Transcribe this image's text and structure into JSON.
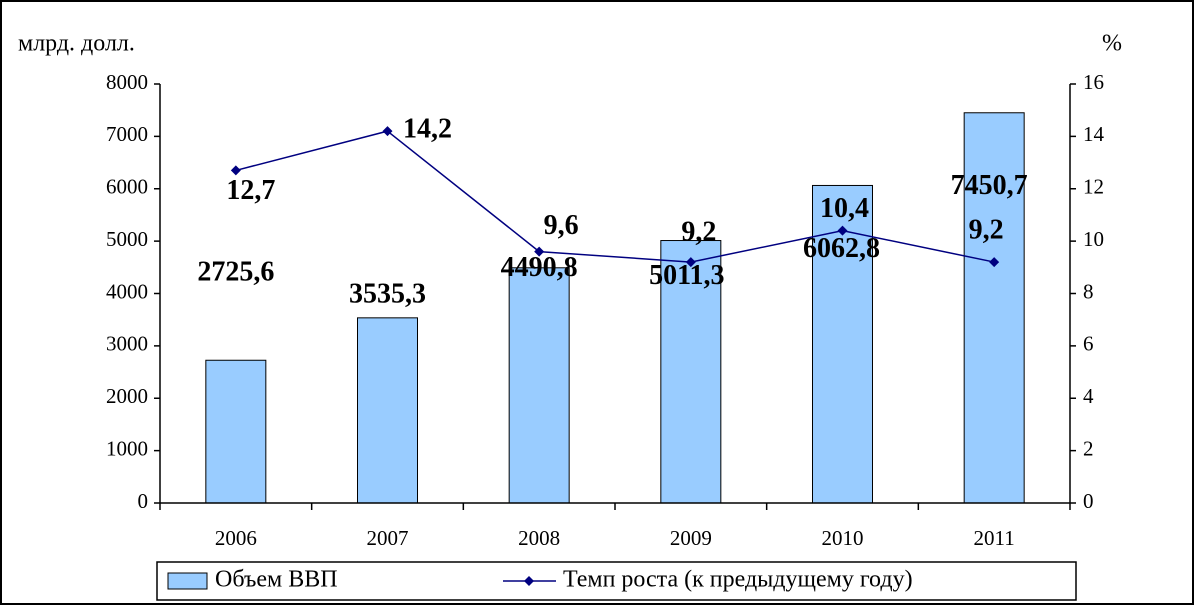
{
  "chart_data": {
    "type": "bar_line",
    "y_label": "млрд. долл.",
    "y2_label": "%",
    "categories": [
      "2006",
      "2007",
      "2008",
      "2009",
      "2010",
      "2011"
    ],
    "series": [
      {
        "name": "Объем ВВП",
        "type": "bar",
        "color": "#99ccff",
        "values": [
          2725.6,
          3535.3,
          4490.8,
          5011.3,
          6062.8,
          7450.7
        ],
        "value_labels": [
          "2725,6",
          "3535,3",
          "4490,8",
          "5011,3",
          "6062,8",
          "7450,7"
        ]
      },
      {
        "name": "Темп роста (к предыдущему году)",
        "type": "line",
        "axis": "y2",
        "color": "#000080",
        "values": [
          12.7,
          14.2,
          9.6,
          9.2,
          10.4,
          9.2
        ],
        "value_labels": [
          "12,7",
          "14,2",
          "9,6",
          "9,2",
          "10,4",
          "9,2"
        ]
      }
    ],
    "ylim": [
      0,
      8000
    ],
    "yticks": [
      0,
      1000,
      2000,
      3000,
      4000,
      5000,
      6000,
      7000,
      8000
    ],
    "y2lim": [
      0,
      16
    ],
    "y2ticks": [
      0,
      2,
      4,
      6,
      8,
      10,
      12,
      14,
      16
    ],
    "legend": "bottom"
  }
}
